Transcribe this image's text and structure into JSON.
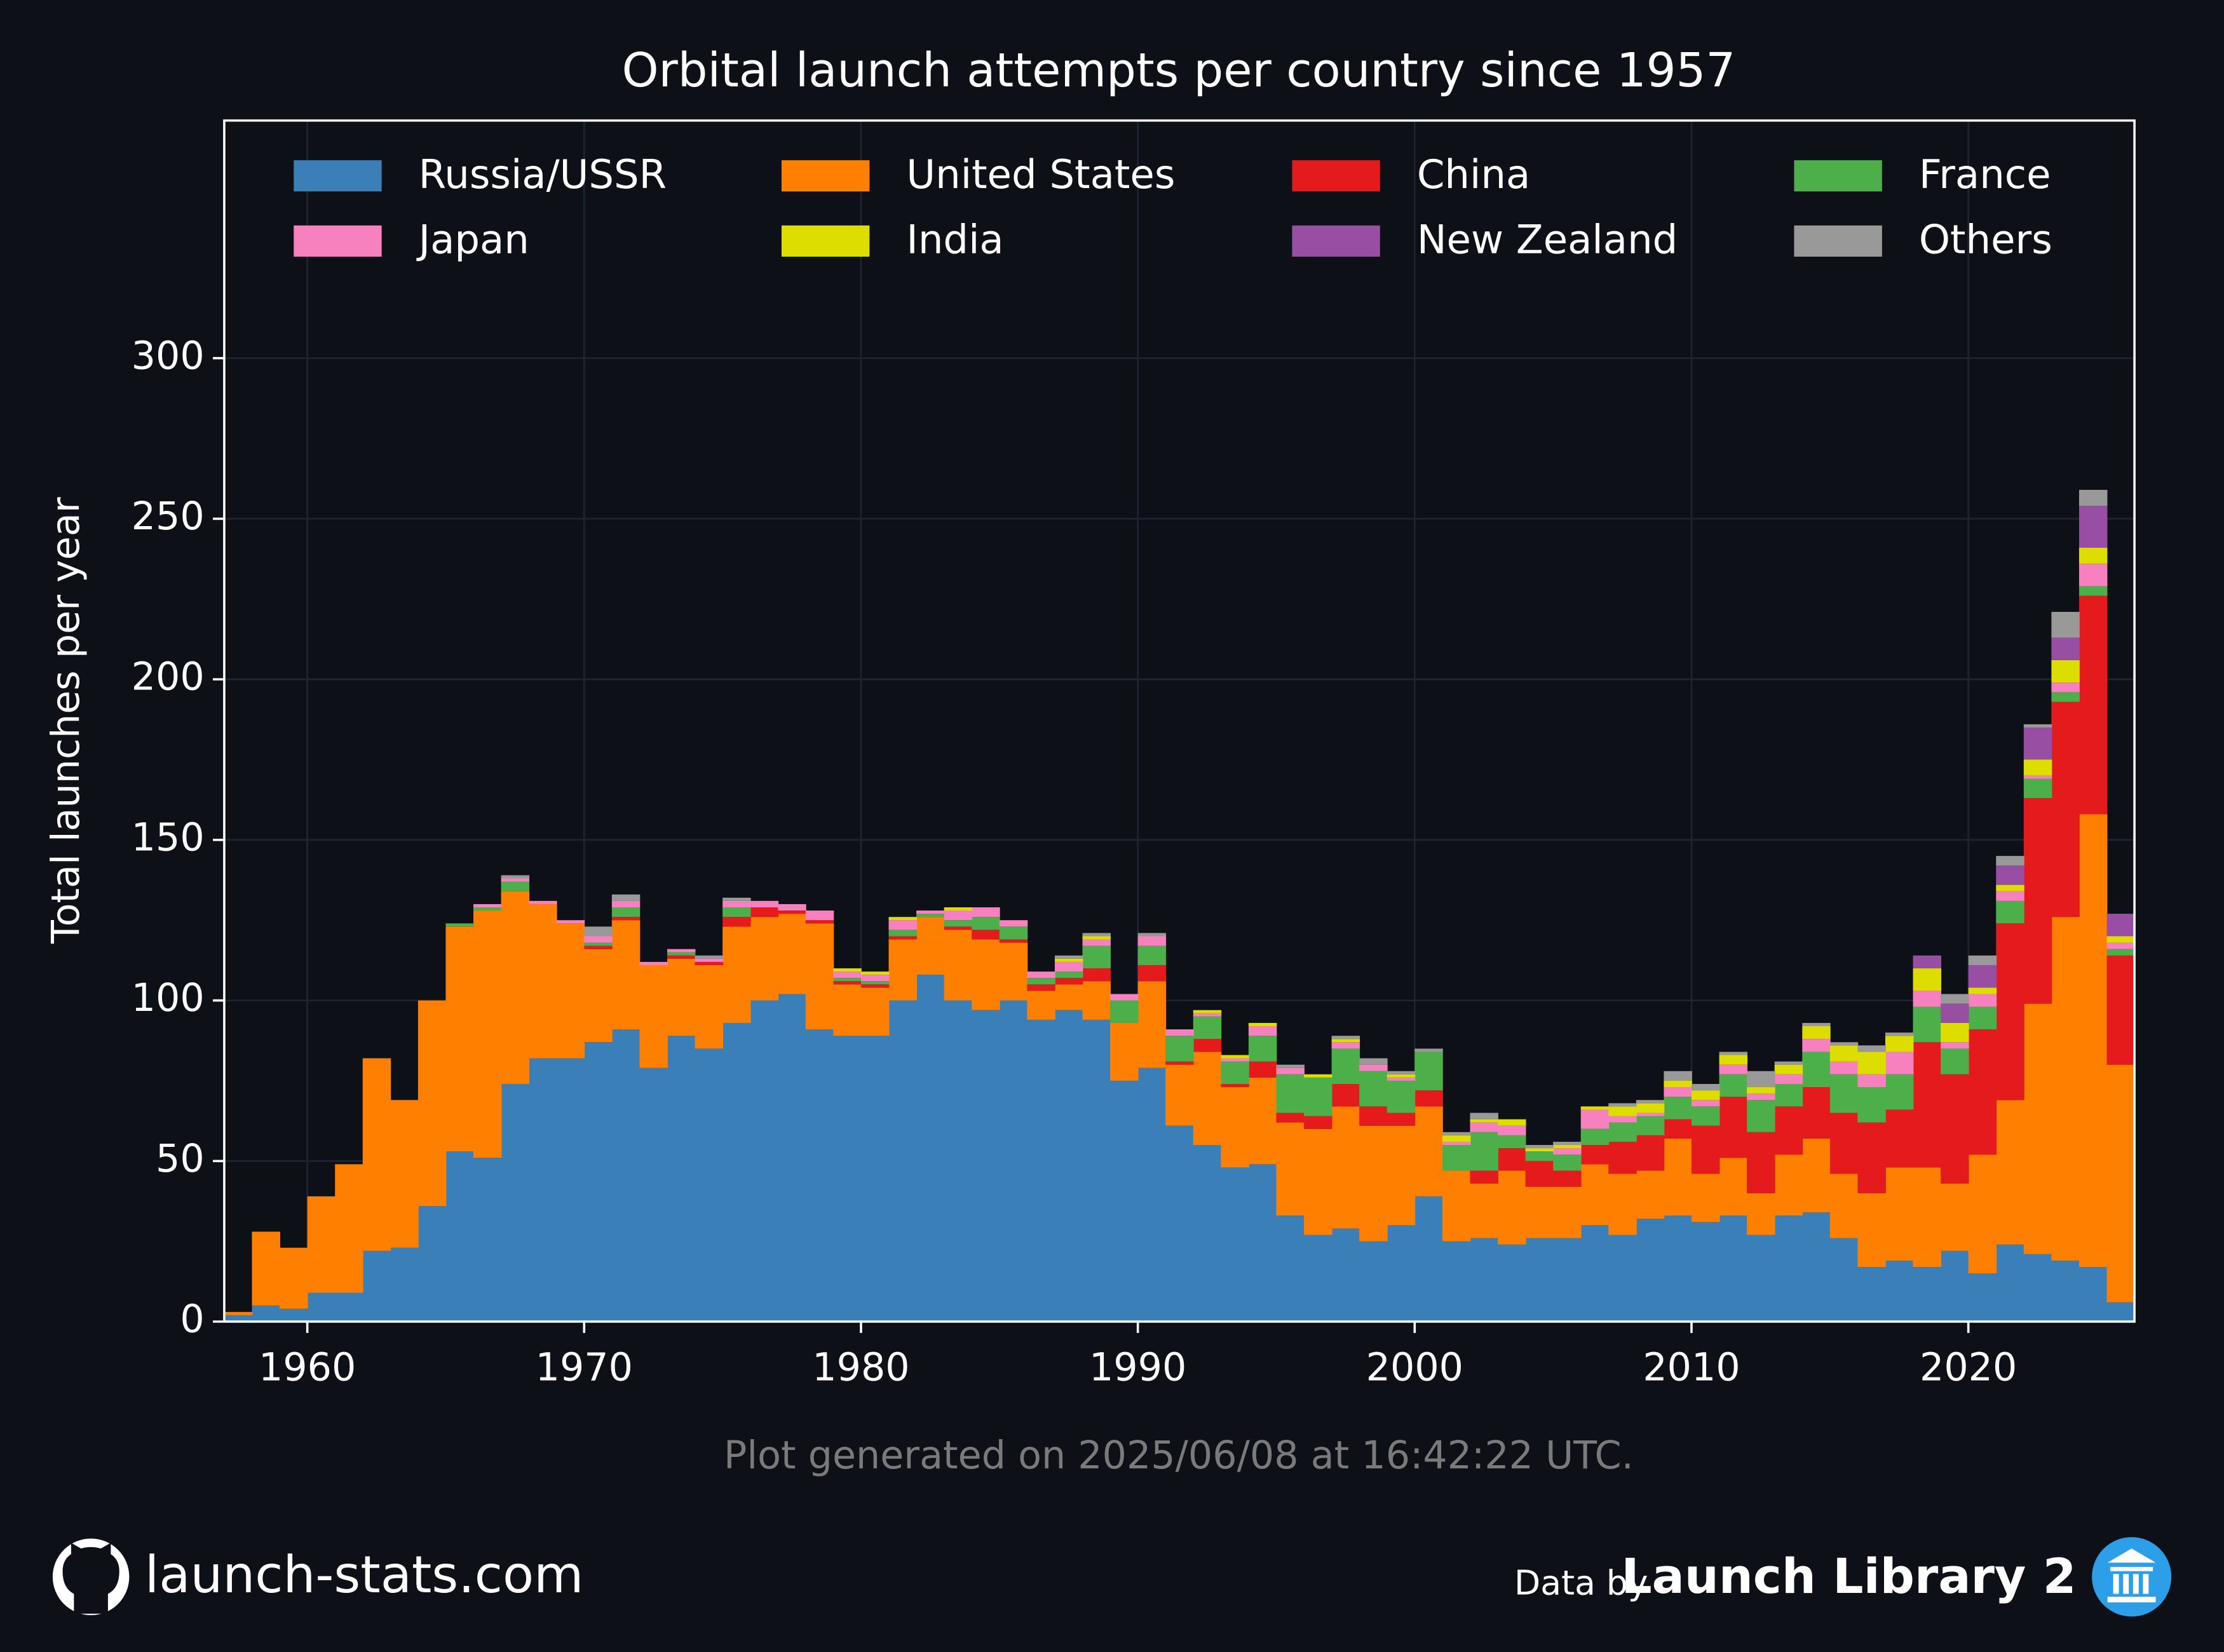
{
  "chart_data": {
    "type": "bar",
    "stacked": true,
    "title": "Orbital launch attempts per country since 1957",
    "ylabel": "Total launches per year",
    "footnote": "Plot generated on 2025/06/08 at 16:42:22 UTC.",
    "site": "launch-stats.com",
    "credit_prefix": "Data by",
    "credit_name": "Launch Library 2",
    "xlim": [
      1957,
      2026
    ],
    "ylim": [
      0,
      374
    ],
    "xticks": [
      1960,
      1970,
      1980,
      1990,
      2000,
      2010,
      2020
    ],
    "yticks": [
      0,
      50,
      100,
      150,
      200,
      250,
      300
    ],
    "grid": true,
    "legend": "top",
    "x": [
      1957,
      1958,
      1959,
      1960,
      1961,
      1962,
      1963,
      1964,
      1965,
      1966,
      1967,
      1968,
      1969,
      1970,
      1971,
      1972,
      1973,
      1974,
      1975,
      1976,
      1977,
      1978,
      1979,
      1980,
      1981,
      1982,
      1983,
      1984,
      1985,
      1986,
      1987,
      1988,
      1989,
      1990,
      1991,
      1992,
      1993,
      1994,
      1995,
      1996,
      1997,
      1998,
      1999,
      2000,
      2001,
      2002,
      2003,
      2004,
      2005,
      2006,
      2007,
      2008,
      2009,
      2010,
      2011,
      2012,
      2013,
      2014,
      2015,
      2016,
      2017,
      2018,
      2019,
      2020,
      2021,
      2022,
      2023,
      2024,
      2025
    ],
    "series": [
      {
        "name": "Russia/USSR",
        "color": "#3a7fb8",
        "values": [
          2,
          5,
          4,
          9,
          9,
          22,
          23,
          36,
          53,
          51,
          74,
          82,
          82,
          87,
          91,
          79,
          89,
          85,
          93,
          100,
          102,
          91,
          89,
          89,
          100,
          108,
          100,
          97,
          100,
          94,
          97,
          94,
          75,
          79,
          61,
          55,
          48,
          49,
          33,
          27,
          29,
          25,
          30,
          39,
          25,
          26,
          24,
          26,
          26,
          30,
          27,
          32,
          33,
          31,
          33,
          27,
          33,
          34,
          26,
          17,
          19,
          17,
          22,
          15,
          24,
          21,
          19,
          17,
          6
        ]
      },
      {
        "name": "United States",
        "color": "#ff7f00",
        "values": [
          1,
          23,
          19,
          30,
          40,
          60,
          46,
          64,
          70,
          77,
          60,
          48,
          42,
          29,
          34,
          32,
          24,
          26,
          30,
          26,
          25,
          33,
          16,
          15,
          19,
          18,
          22,
          22,
          18,
          9,
          8,
          12,
          18,
          27,
          19,
          29,
          25,
          27,
          29,
          33,
          38,
          36,
          31,
          28,
          22,
          17,
          23,
          16,
          16,
          19,
          19,
          15,
          24,
          15,
          18,
          13,
          19,
          23,
          20,
          23,
          29,
          31,
          21,
          37,
          45,
          78,
          107,
          141,
          74
        ]
      },
      {
        "name": "China",
        "color": "#e41a1c",
        "values": [
          0,
          0,
          0,
          0,
          0,
          0,
          0,
          0,
          0,
          0,
          0,
          0,
          0,
          1,
          1,
          0,
          1,
          1,
          3,
          3,
          1,
          1,
          1,
          1,
          1,
          0,
          1,
          3,
          1,
          2,
          2,
          4,
          0,
          5,
          1,
          4,
          1,
          5,
          3,
          4,
          7,
          6,
          4,
          5,
          0,
          4,
          7,
          8,
          5,
          6,
          10,
          11,
          6,
          15,
          19,
          19,
          15,
          16,
          19,
          22,
          18,
          39,
          34,
          39,
          55,
          64,
          67,
          68,
          34
        ]
      },
      {
        "name": "France",
        "color": "#4daf4a",
        "values": [
          0,
          0,
          0,
          0,
          0,
          0,
          0,
          0,
          1,
          1,
          3,
          0,
          0,
          1,
          3,
          0,
          1,
          0,
          3,
          0,
          0,
          0,
          1,
          1,
          2,
          1,
          2,
          4,
          4,
          2,
          2,
          7,
          7,
          6,
          8,
          7,
          7,
          8,
          12,
          12,
          11,
          11,
          10,
          12,
          8,
          12,
          4,
          3,
          5,
          5,
          6,
          6,
          7,
          6,
          7,
          10,
          7,
          11,
          12,
          11,
          11,
          11,
          8,
          7,
          7,
          6,
          3,
          3,
          2
        ]
      },
      {
        "name": "Japan",
        "color": "#f781bf",
        "values": [
          0,
          0,
          0,
          0,
          0,
          0,
          0,
          0,
          0,
          1,
          1,
          1,
          1,
          2,
          2,
          1,
          1,
          1,
          2,
          2,
          2,
          3,
          2,
          2,
          3,
          1,
          3,
          3,
          2,
          2,
          3,
          2,
          2,
          3,
          2,
          1,
          1,
          3,
          2,
          0,
          2,
          2,
          1,
          0,
          1,
          3,
          3,
          0,
          2,
          6,
          2,
          1,
          3,
          2,
          3,
          2,
          3,
          4,
          4,
          4,
          7,
          5,
          2,
          4,
          3,
          1,
          3,
          7,
          2
        ]
      },
      {
        "name": "India",
        "color": "#dddd00",
        "values": [
          0,
          0,
          0,
          0,
          0,
          0,
          0,
          0,
          0,
          0,
          0,
          0,
          0,
          0,
          0,
          0,
          0,
          0,
          0,
          0,
          0,
          0,
          1,
          1,
          1,
          0,
          1,
          0,
          0,
          0,
          1,
          1,
          0,
          0,
          0,
          1,
          1,
          1,
          0,
          1,
          1,
          0,
          1,
          0,
          2,
          1,
          2,
          1,
          1,
          1,
          3,
          3,
          2,
          3,
          3,
          2,
          3,
          4,
          5,
          7,
          5,
          7,
          6,
          2,
          2,
          5,
          7,
          5,
          2
        ]
      },
      {
        "name": "New Zealand",
        "color": "#984ea3",
        "values": [
          0,
          0,
          0,
          0,
          0,
          0,
          0,
          0,
          0,
          0,
          0,
          0,
          0,
          0,
          0,
          0,
          0,
          0,
          0,
          0,
          0,
          0,
          0,
          0,
          0,
          0,
          0,
          0,
          0,
          0,
          0,
          0,
          0,
          0,
          0,
          0,
          0,
          0,
          0,
          0,
          0,
          0,
          0,
          0,
          0,
          0,
          0,
          0,
          0,
          0,
          0,
          0,
          0,
          0,
          0,
          0,
          0,
          0,
          0,
          0,
          0,
          4,
          6,
          7,
          6,
          10,
          7,
          13,
          7
        ]
      },
      {
        "name": "Others",
        "color": "#999999",
        "values": [
          0,
          0,
          0,
          0,
          0,
          0,
          0,
          0,
          0,
          0,
          1,
          0,
          0,
          3,
          2,
          0,
          0,
          1,
          1,
          0,
          0,
          0,
          0,
          0,
          0,
          0,
          0,
          0,
          0,
          0,
          1,
          1,
          0,
          1,
          0,
          0,
          0,
          0,
          1,
          0,
          1,
          2,
          1,
          1,
          1,
          2,
          0,
          1,
          1,
          0,
          1,
          1,
          3,
          2,
          1,
          5,
          1,
          1,
          1,
          2,
          1,
          0,
          3,
          3,
          3,
          1,
          8,
          5,
          0
        ]
      }
    ]
  }
}
